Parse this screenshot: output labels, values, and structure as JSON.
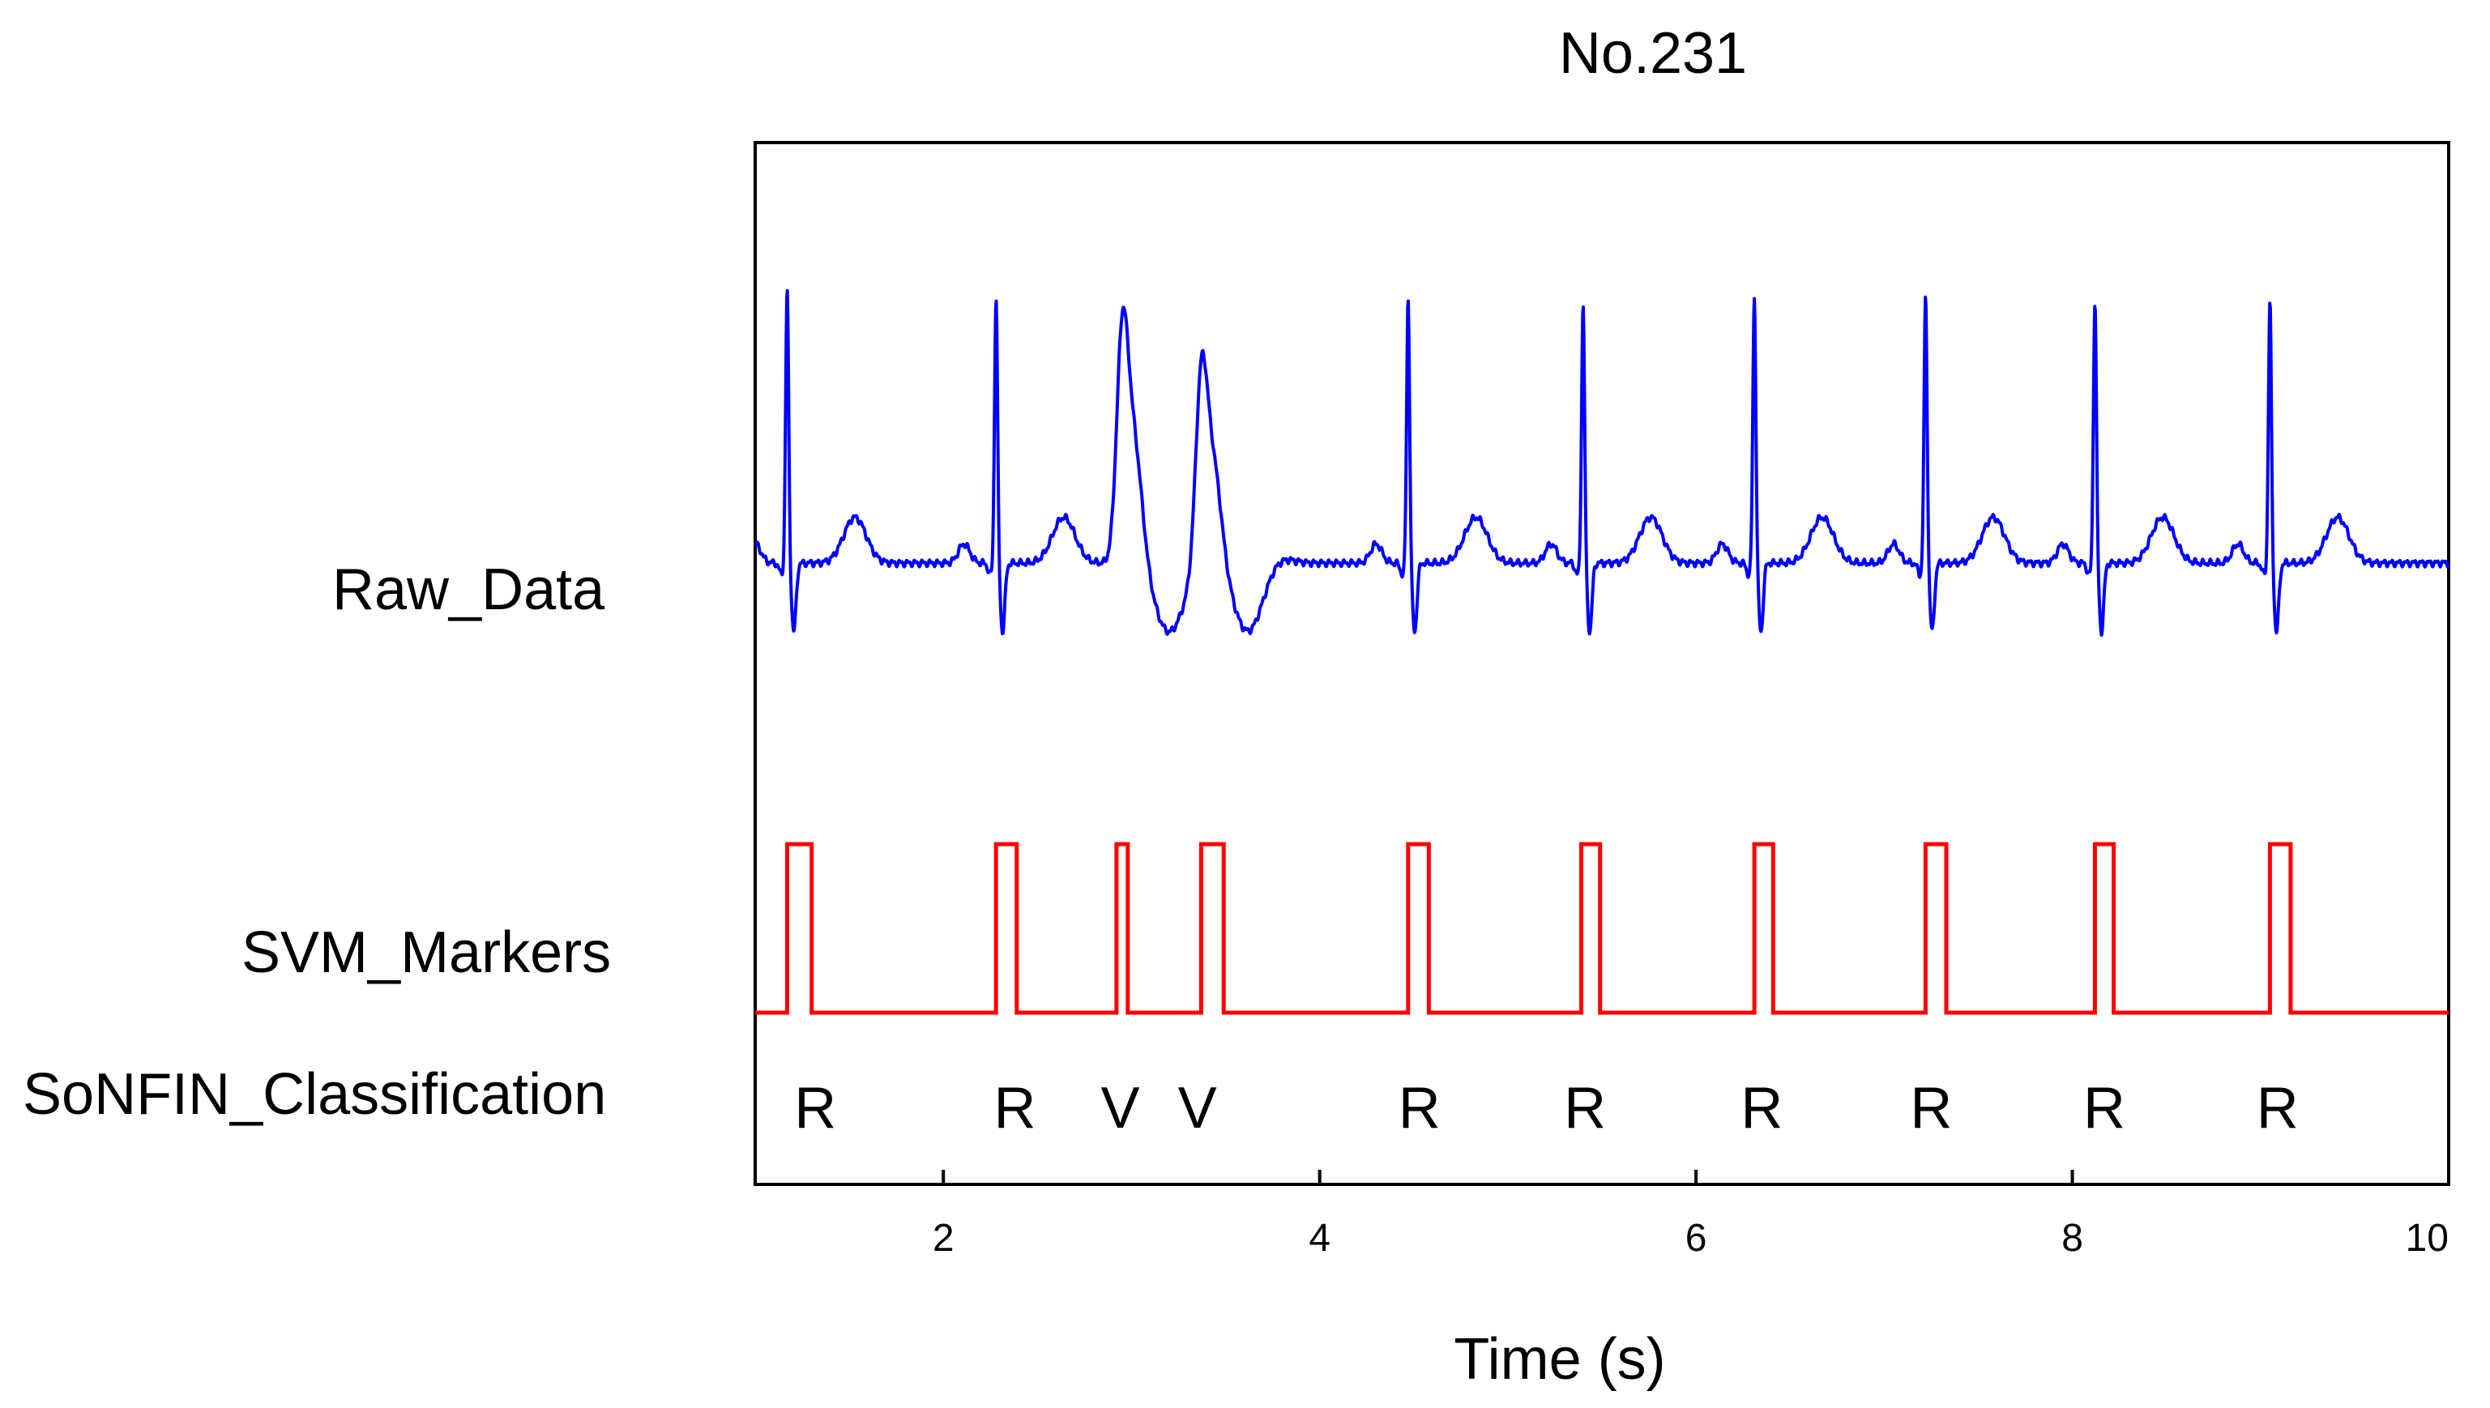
{
  "chart_data": {
    "type": "line",
    "title": "No.231",
    "xlabel": "Time (s)",
    "ylabel": "",
    "xlim": [
      1,
      10
    ],
    "grid": false,
    "x_ticks": [
      "2",
      "4",
      "6",
      "8",
      "10"
    ],
    "row_labels": {
      "raw": "Raw_Data",
      "svm": "SVM_Markers",
      "cls": "SoNFIN_Classification"
    },
    "series": [
      {
        "name": "Raw_Data",
        "color": "#0000ff",
        "ectopic_beats": [
          {
            "r_time": 2.95,
            "amplitude": 0.95
          },
          {
            "r_time": 3.37,
            "amplitude": 0.8
          }
        ],
        "normal_beats": [
          {
            "r_time": 1.17,
            "amplitude": 0.72
          },
          {
            "r_time": 2.28,
            "amplitude": 0.7
          },
          {
            "r_time": 4.47,
            "amplitude": 0.7
          },
          {
            "r_time": 5.4,
            "amplitude": 0.68
          },
          {
            "r_time": 6.31,
            "amplitude": 0.7
          },
          {
            "r_time": 7.22,
            "amplitude": 0.7
          },
          {
            "r_time": 8.12,
            "amplitude": 0.69
          },
          {
            "r_time": 9.05,
            "amplitude": 0.69
          }
        ]
      },
      {
        "name": "SVM_Markers",
        "color": "#ff0000",
        "pulses": [
          {
            "start": 1.17,
            "end": 1.3
          },
          {
            "start": 2.28,
            "end": 2.39
          },
          {
            "start": 2.92,
            "end": 2.98
          },
          {
            "start": 3.37,
            "end": 3.49
          },
          {
            "start": 4.47,
            "end": 4.58
          },
          {
            "start": 5.39,
            "end": 5.49
          },
          {
            "start": 6.31,
            "end": 6.41
          },
          {
            "start": 7.22,
            "end": 7.33
          },
          {
            "start": 8.12,
            "end": 8.22
          },
          {
            "start": 9.05,
            "end": 9.16
          }
        ]
      }
    ],
    "classifications": [
      {
        "x": 1.32,
        "label": "R"
      },
      {
        "x": 2.38,
        "label": "R"
      },
      {
        "x": 2.94,
        "label": "V"
      },
      {
        "x": 3.35,
        "label": "V"
      },
      {
        "x": 4.53,
        "label": "R"
      },
      {
        "x": 5.41,
        "label": "R"
      },
      {
        "x": 6.35,
        "label": "R"
      },
      {
        "x": 7.25,
        "label": "R"
      },
      {
        "x": 8.17,
        "label": "R"
      },
      {
        "x": 9.09,
        "label": "R"
      }
    ]
  }
}
